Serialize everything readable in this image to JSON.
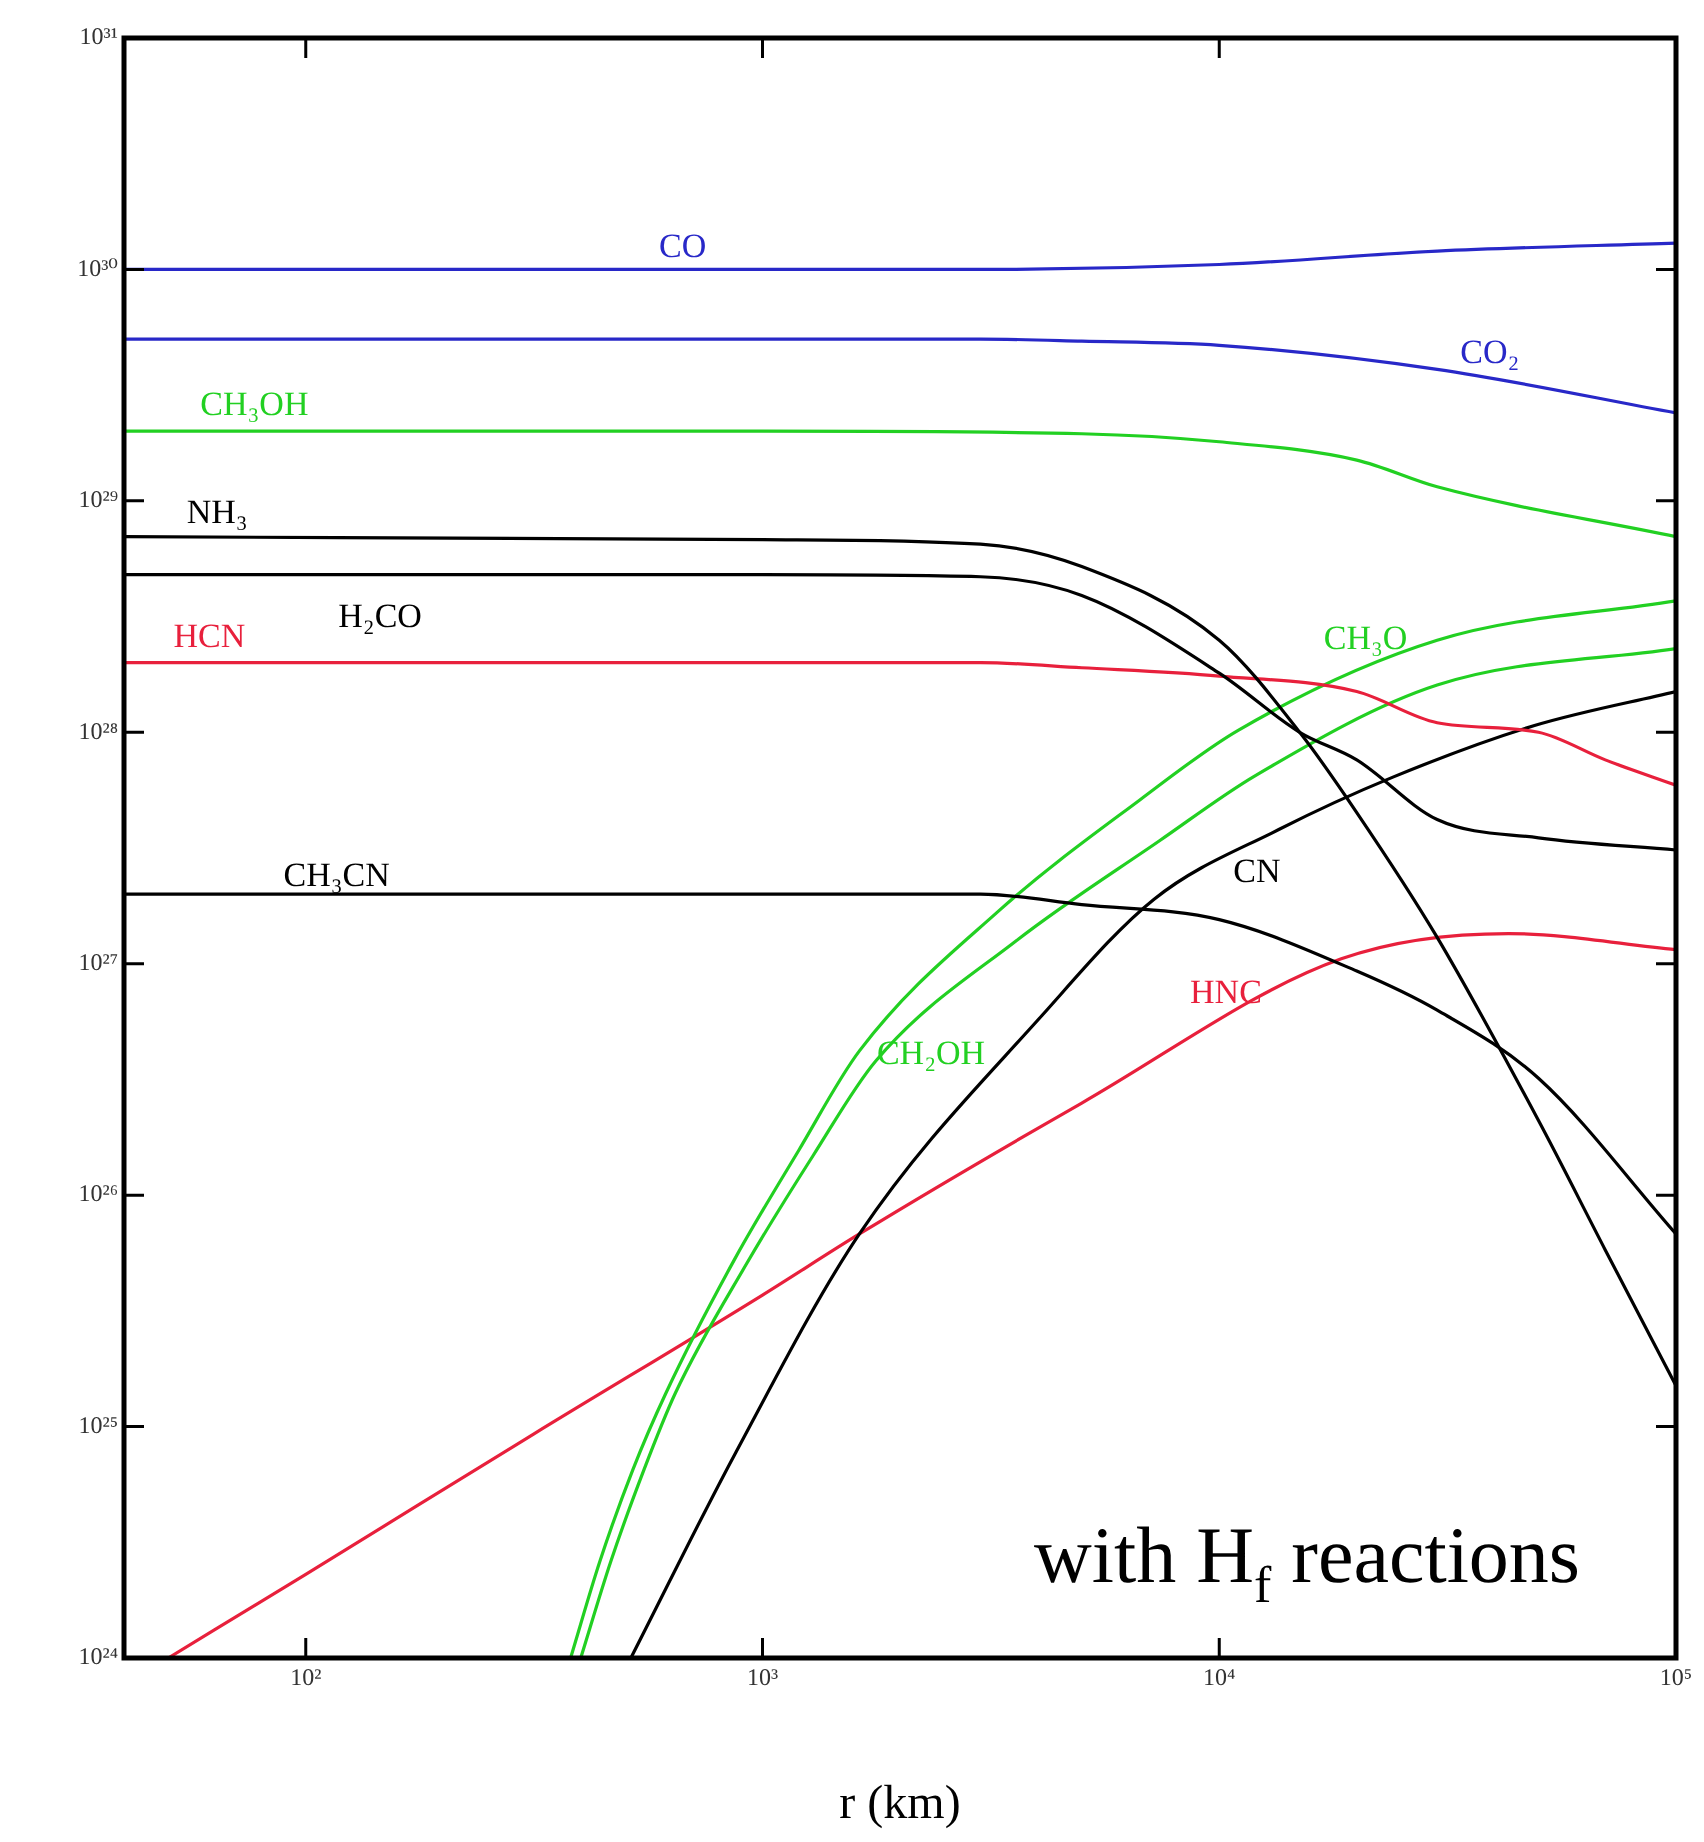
{
  "chart_data": {
    "type": "line",
    "xlabel": "r (km)",
    "log": "xy",
    "marker": "none",
    "xlim": [
      40,
      100000
    ],
    "ylim": [
      1e+24,
      1e+31
    ],
    "xticks": [
      {
        "value": 100,
        "label": "10²"
      },
      {
        "value": 1000,
        "label": "10³"
      },
      {
        "value": 10000,
        "label": "10⁴"
      },
      {
        "value": 100000,
        "label": "10⁵"
      }
    ],
    "yticks": [
      {
        "value": 1e+24,
        "label": "10²⁴"
      },
      {
        "value": 1e+25,
        "label": "10²⁵"
      },
      {
        "value": 1e+26,
        "label": "10²⁶"
      },
      {
        "value": 1e+27,
        "label": "10²⁷"
      },
      {
        "value": 1e+28,
        "label": "10²⁸"
      },
      {
        "value": 1e+29,
        "label": "10²⁹"
      },
      {
        "value": 1e+30,
        "label": "10³⁰"
      },
      {
        "value": 1e+31,
        "label": "10³¹"
      }
    ],
    "series": [
      {
        "name": "CO",
        "color": "#2828c8",
        "x": [
          40,
          1000,
          3000,
          10000,
          30000,
          100000
        ],
        "values": [
          1e+30,
          1e+30,
          1e+30,
          1.05e+30,
          1.2e+30,
          1.3e+30
        ]
      },
      {
        "name": "CO₂",
        "color": "#2828c8",
        "x": [
          40,
          1000,
          3000,
          5000,
          10000,
          30000,
          100000
        ],
        "values": [
          5e+29,
          5e+29,
          5e+29,
          4.9e+29,
          4.7e+29,
          3.7e+29,
          2.4e+29
        ]
      },
      {
        "name": "CH₃OH",
        "color": "#22d022",
        "x": [
          40,
          1000,
          5000,
          10000,
          20000,
          30000,
          100000
        ],
        "values": [
          2e+29,
          2e+29,
          1.95e+29,
          1.8e+29,
          1.5e+29,
          1.15e+29,
          7e+28
        ]
      },
      {
        "name": "NH₃",
        "color": "#000000",
        "x": [
          40,
          1000,
          3000,
          5000,
          10000,
          15000,
          20000,
          30000,
          50000,
          70000,
          100000
        ],
        "values": [
          7e+28,
          6.8e+28,
          6.5e+28,
          5.2e+28,
          2.5e+28,
          1e+28,
          4.5e+27,
          1.3e+27,
          2.1e+26,
          5.8e+25,
          1.5e+25
        ]
      },
      {
        "name": "H₂CO",
        "color": "#000000",
        "x": [
          40,
          1000,
          3000,
          5000,
          10000,
          15000,
          20000,
          30000,
          50000,
          100000
        ],
        "values": [
          4.8e+28,
          4.8e+28,
          4.7e+28,
          3.9e+28,
          1.8e+28,
          1e+28,
          7.6e+27,
          4.2e+27,
          3.5e+27,
          3.1e+27
        ]
      },
      {
        "name": "HCN",
        "color": "#e8203c",
        "x": [
          40,
          3000,
          5000,
          10000,
          20000,
          30000,
          50000,
          70000,
          100000
        ],
        "values": [
          2e+28,
          2e+28,
          1.9e+28,
          1.75e+28,
          1.5e+28,
          1.1e+28,
          1e+28,
          7.6e+27,
          5.9e+27
        ]
      },
      {
        "name": "CH₃CN",
        "color": "#000000",
        "x": [
          40,
          3000,
          5000,
          10000,
          20000,
          30000,
          50000,
          100000
        ],
        "values": [
          2e+27,
          2e+27,
          1.8e+27,
          1.55e+27,
          9.3e+26,
          6.3e+26,
          3.2e+26,
          6.8e+25
        ]
      },
      {
        "name": "CH₃O",
        "color": "#22d022",
        "x": [
          380,
          440,
          520,
          615,
          865,
          1200,
          1630,
          3300,
          6700,
          11000,
          30000,
          100000
        ],
        "values": [
          1e+24,
          2.6e+24,
          6.5e+24,
          1.4e+25,
          5.2e+25,
          1.56e+26,
          4.2e+26,
          1.7e+27,
          5.1e+27,
          1.02e+28,
          2.5e+28,
          3.7e+28
        ]
      },
      {
        "name": "CH₂OH",
        "color": "#22d022",
        "x": [
          400,
          465,
          550,
          645,
          920,
          1290,
          1770,
          3600,
          7400,
          12000,
          30000,
          100000
        ],
        "values": [
          1e+24,
          2.6e+24,
          6.5e+24,
          1.4e+25,
          5e+25,
          1.48e+26,
          3.8e+26,
          1.26e+27,
          3.4e+27,
          6.5e+27,
          1.6e+28,
          2.3e+28
        ]
      },
      {
        "name": "CN",
        "color": "#000000",
        "x": [
          515,
          870,
          1630,
          4100,
          7200,
          13500,
          24000,
          49000,
          100000
        ],
        "values": [
          1e+24,
          7.6e+24,
          6.8e+25,
          6e+26,
          1.9e+27,
          3.8e+27,
          6.4e+27,
          1.07e+28,
          1.5e+28
        ]
      },
      {
        "name": "HNC",
        "color": "#e8203c",
        "x": [
          50,
          100,
          316,
          1000,
          1630,
          5000,
          18500,
          43000,
          100000
        ],
        "values": [
          1e+24,
          2.3e+24,
          9.3e+24,
          3.7e+25,
          6.8e+25,
          2.5e+26,
          1.05e+27,
          1.35e+27,
          1.15e+27
        ]
      }
    ],
    "annotations": [
      "with H$_{f}$ reactions"
    ]
  }
}
